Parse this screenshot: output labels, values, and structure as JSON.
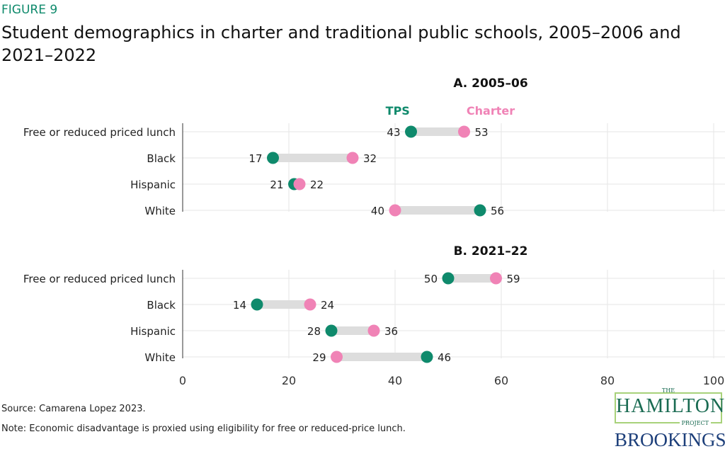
{
  "figure_label": "FIGURE 9",
  "title": "Student demographics in charter and traditional public schools, 2005–2006 and 2021–2022",
  "source": "Source: Camarena Lopez 2023.",
  "note": "Note: Economic disadvantage is proxied using eligibility for free or reduced-price lunch.",
  "logos": {
    "hamilton_the": "THE",
    "hamilton": "HAMILTON",
    "hamilton_project": "PROJECT",
    "brookings": "BROOKINGS"
  },
  "colors": {
    "tps": "#0f8a6c",
    "charter": "#f083b6",
    "connector": "#dddddd",
    "grid": "#e6e6e6"
  },
  "chart_data": [
    {
      "type": "dumbbell",
      "title": "A. 2005–06",
      "legend": {
        "tps": "TPS",
        "charter": "Charter"
      },
      "categories": [
        "Free or reduced priced lunch",
        "Black",
        "Hispanic",
        "White"
      ],
      "series": [
        {
          "name": "TPS",
          "values": [
            43,
            17,
            21,
            56
          ]
        },
        {
          "name": "Charter",
          "values": [
            53,
            32,
            22,
            40
          ]
        }
      ],
      "xlim": [
        0,
        100
      ],
      "grid": true
    },
    {
      "type": "dumbbell",
      "title": "B. 2021–22",
      "categories": [
        "Free or reduced priced lunch",
        "Black",
        "Hispanic",
        "White"
      ],
      "series": [
        {
          "name": "TPS",
          "values": [
            50,
            14,
            28,
            46
          ]
        },
        {
          "name": "Charter",
          "values": [
            59,
            24,
            36,
            29
          ]
        }
      ],
      "xlim": [
        0,
        100
      ],
      "xticks": [
        "0",
        "20",
        "40",
        "60",
        "80",
        "100"
      ],
      "grid": true
    }
  ]
}
